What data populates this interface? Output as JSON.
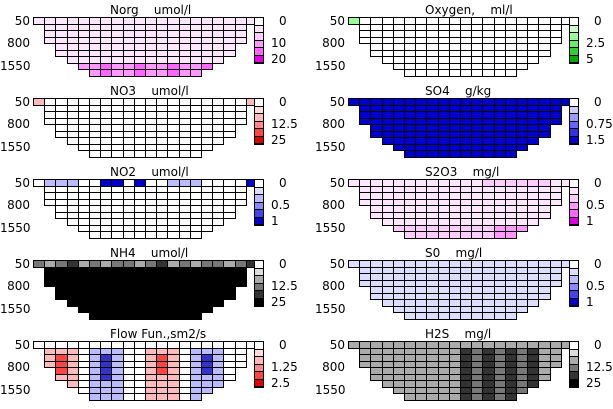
{
  "chart_data": [
    {
      "type": "heatmap",
      "title": "Norg    umol/l",
      "yticks": [
        "50",
        "800",
        "1550"
      ],
      "colorbar": [
        "0",
        "10",
        "20"
      ],
      "colors": [
        "#ffffff",
        "#ffe6ff",
        "#ffccff",
        "#ff99ff",
        "#ff66ff",
        "#e600e6"
      ],
      "fill": "light-pink",
      "accent": "bottom-magenta"
    },
    {
      "type": "heatmap",
      "title": "Oxygen,    ml/l",
      "yticks": [
        "50",
        "800",
        "1550"
      ],
      "colorbar": [
        "0",
        "2.5",
        "5"
      ],
      "colors": [
        "#ffffff",
        "#ccffcc",
        "#99ff99",
        "#66ee66",
        "#33cc33",
        "#00aa00"
      ],
      "fill": "white",
      "accent": "topleft-green"
    },
    {
      "type": "heatmap",
      "title": "NO3    umol/l",
      "yticks": [
        "50",
        "800",
        "1550"
      ],
      "colorbar": [
        "0",
        "12.5",
        "25"
      ],
      "colors": [
        "#ffffff",
        "#ffdddd",
        "#ffbbbb",
        "#ff8888",
        "#ff4444",
        "#dd0000"
      ],
      "fill": "white",
      "accent": "top-pink"
    },
    {
      "type": "heatmap",
      "title": "SO4    g/kg",
      "yticks": [
        "50",
        "800",
        "1550"
      ],
      "colorbar": [
        "0",
        "0.75",
        "1.5"
      ],
      "colors": [
        "#ffffff",
        "#ccccff",
        "#9999ff",
        "#6666ff",
        "#3333dd",
        "#0000cc"
      ],
      "fill": "blue",
      "accent": "none"
    },
    {
      "type": "heatmap",
      "title": "NO2    umol/l",
      "yticks": [
        "50",
        "800",
        "1550"
      ],
      "colorbar": [
        "0",
        "0.5",
        "1"
      ],
      "colors": [
        "#ffffff",
        "#ddddff",
        "#bbbbff",
        "#8888ff",
        "#4444ee",
        "#0000cc"
      ],
      "fill": "white",
      "accent": "top-blue"
    },
    {
      "type": "heatmap",
      "title": "S2O3    mg/l",
      "yticks": [
        "50",
        "800",
        "1550"
      ],
      "colorbar": [
        "0",
        "0.5",
        "1"
      ],
      "colors": [
        "#ffffff",
        "#ffe6ff",
        "#ffccff",
        "#ff99ff",
        "#ff66ff",
        "#dd00dd"
      ],
      "fill": "light-pink",
      "accent": "top-bottom-pink"
    },
    {
      "type": "heatmap",
      "title": "NH4    umol/l",
      "yticks": [
        "50",
        "800",
        "1550"
      ],
      "colorbar": [
        "0",
        "12.5",
        "25"
      ],
      "colors": [
        "#ffffff",
        "#dddddd",
        "#aaaaaa",
        "#777777",
        "#333333",
        "#000000"
      ],
      "fill": "black",
      "accent": "top-grey"
    },
    {
      "type": "heatmap",
      "title": "S0    mg/l",
      "yticks": [
        "50",
        "800",
        "1550"
      ],
      "colorbar": [
        "0",
        "0.5",
        "1"
      ],
      "colors": [
        "#ffffff",
        "#ddddff",
        "#bbbbff",
        "#8888ff",
        "#4444ee",
        "#0000cc"
      ],
      "fill": "lavender",
      "accent": "none"
    },
    {
      "type": "heatmap",
      "title": "Flow Fun.,sm2/s",
      "yticks": [
        "50",
        "800",
        "1550"
      ],
      "colorbar": [
        "0",
        "1.25",
        "2.5"
      ],
      "colors": [
        "#ffffff",
        "#ffdddd",
        "#ffbbbb",
        "#ff8888",
        "#ff4444",
        "#dd0000"
      ],
      "fill": "flow",
      "accent": "none"
    },
    {
      "type": "heatmap",
      "title": "H2S    mg/l",
      "yticks": [
        "50",
        "800",
        "1550"
      ],
      "colorbar": [
        "0",
        "12.5",
        "25"
      ],
      "colors": [
        "#ffffff",
        "#dddddd",
        "#aaaaaa",
        "#777777",
        "#333333",
        "#000000"
      ],
      "fill": "grey",
      "accent": "none"
    }
  ]
}
